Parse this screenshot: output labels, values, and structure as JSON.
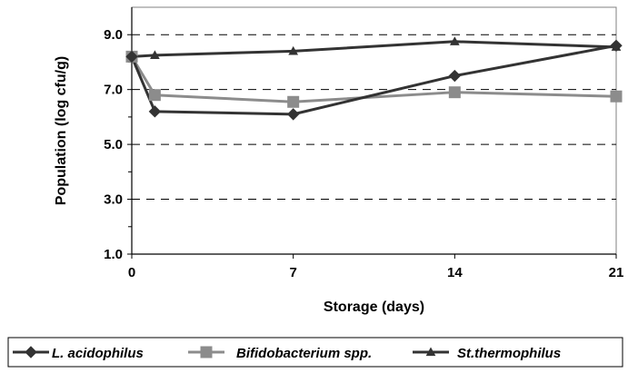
{
  "chart_data": {
    "type": "line",
    "title": "",
    "xlabel": "Storage (days)",
    "ylabel": "Population (log cfu/g)",
    "xlim": [
      0,
      21
    ],
    "ylim": [
      1.0,
      10.0
    ],
    "x_ticks": [
      0,
      7,
      14,
      21
    ],
    "y_ticks": [
      1.0,
      3.0,
      5.0,
      7.0,
      9.0
    ],
    "x_tick_labels": [
      "0",
      "7",
      "14",
      "21"
    ],
    "y_tick_labels": [
      "1.0",
      "3.0",
      "5.0",
      "7.0",
      "9.0"
    ],
    "grid": "horizontal dashed",
    "legend_position": "bottom",
    "series": [
      {
        "name": "L. acidophilus",
        "marker": "diamond",
        "color": "#333333",
        "x": [
          0,
          1,
          7,
          14,
          21
        ],
        "y": [
          8.2,
          6.2,
          6.1,
          7.5,
          8.6
        ]
      },
      {
        "name": "Bifidobacterium spp.",
        "marker": "square",
        "color": "#8c8c8c",
        "x": [
          0,
          1,
          7,
          14,
          21
        ],
        "y": [
          8.2,
          6.8,
          6.55,
          6.9,
          6.75
        ]
      },
      {
        "name": "St.thermophilus",
        "marker": "triangle",
        "color": "#333333",
        "x": [
          0,
          1,
          7,
          14,
          21
        ],
        "y": [
          8.2,
          8.25,
          8.4,
          8.75,
          8.55
        ]
      }
    ]
  }
}
